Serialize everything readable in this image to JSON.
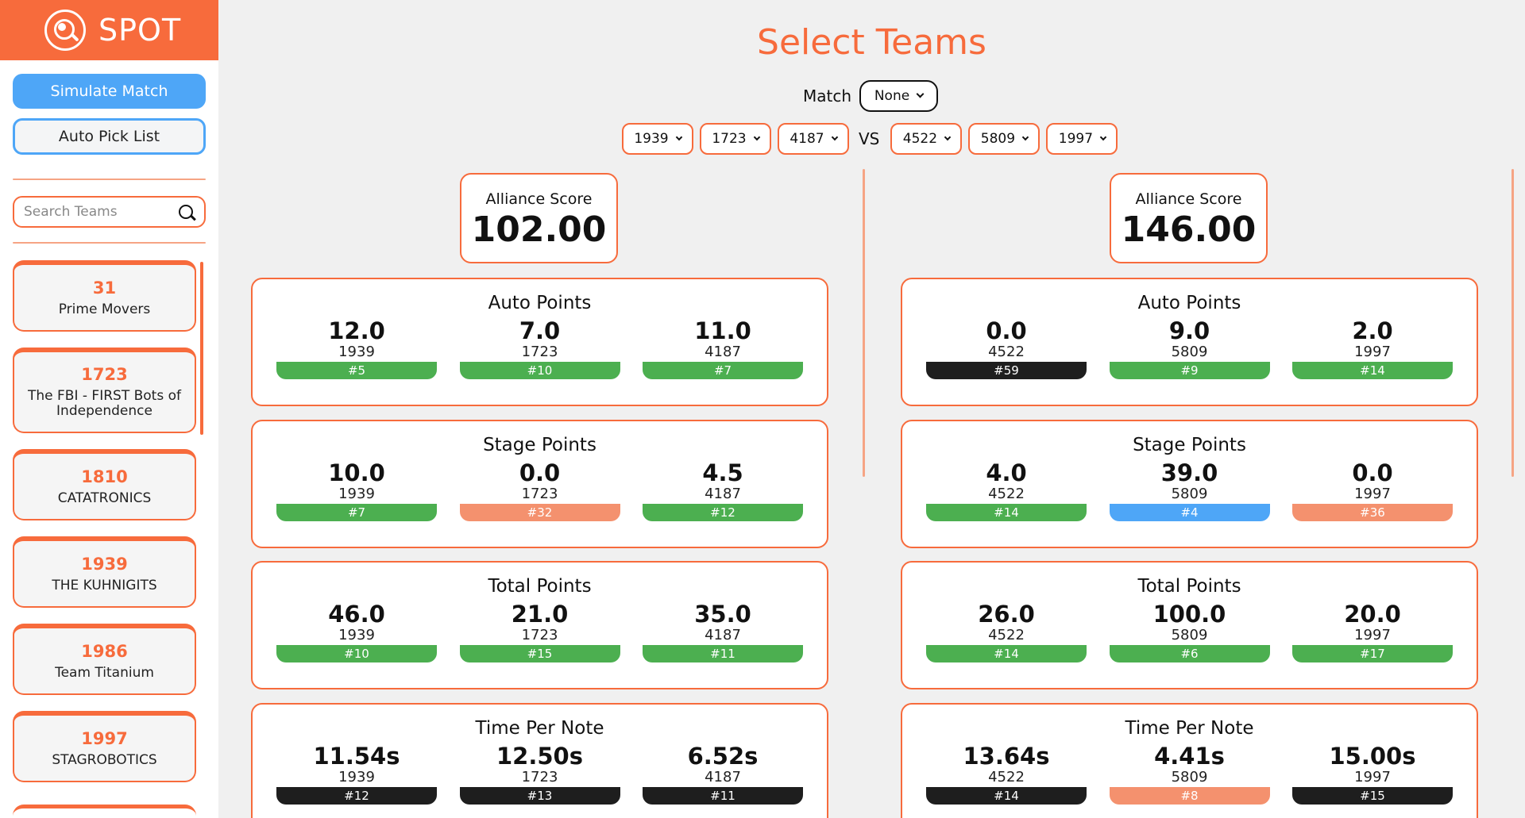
{
  "app": {
    "name": "SPOT"
  },
  "sidebar": {
    "simulate_label": "Simulate Match",
    "autopick_label": "Auto Pick List",
    "search_placeholder": "Search Teams",
    "teams": [
      {
        "number": "31",
        "name": "Prime Movers"
      },
      {
        "number": "1723",
        "name": "The FBI - FIRST Bots of Independence"
      },
      {
        "number": "1810",
        "name": "CATATRONICS"
      },
      {
        "number": "1939",
        "name": "THE KUHNIGITS"
      },
      {
        "number": "1986",
        "name": "Team Titanium"
      },
      {
        "number": "1997",
        "name": "STAGROBOTICS"
      }
    ]
  },
  "main": {
    "title": "Select Teams",
    "match_label": "Match",
    "match_value": "None",
    "vs_label": "VS",
    "red_teams": [
      "1939",
      "1723",
      "4187"
    ],
    "blue_teams": [
      "4522",
      "5809",
      "1997"
    ],
    "alliance_score_label": "Alliance Score",
    "left": {
      "alliance_score": "102.00",
      "cards": [
        {
          "title": "Auto Points",
          "cols": [
            {
              "value": "12.0",
              "team": "1939",
              "rank": "#5",
              "color": "green"
            },
            {
              "value": "7.0",
              "team": "1723",
              "rank": "#10",
              "color": "green"
            },
            {
              "value": "11.0",
              "team": "4187",
              "rank": "#7",
              "color": "green"
            }
          ]
        },
        {
          "title": "Stage Points",
          "cols": [
            {
              "value": "10.0",
              "team": "1939",
              "rank": "#7",
              "color": "green"
            },
            {
              "value": "0.0",
              "team": "1723",
              "rank": "#32",
              "color": "salmon"
            },
            {
              "value": "4.5",
              "team": "4187",
              "rank": "#12",
              "color": "green"
            }
          ]
        },
        {
          "title": "Total Points",
          "cols": [
            {
              "value": "46.0",
              "team": "1939",
              "rank": "#10",
              "color": "green"
            },
            {
              "value": "21.0",
              "team": "1723",
              "rank": "#15",
              "color": "green"
            },
            {
              "value": "35.0",
              "team": "4187",
              "rank": "#11",
              "color": "green"
            }
          ]
        },
        {
          "title": "Time Per Note",
          "cols": [
            {
              "value": "11.54s",
              "team": "1939",
              "rank": "#12",
              "color": "black"
            },
            {
              "value": "12.50s",
              "team": "1723",
              "rank": "#13",
              "color": "black"
            },
            {
              "value": "6.52s",
              "team": "4187",
              "rank": "#11",
              "color": "black"
            }
          ]
        }
      ]
    },
    "right": {
      "alliance_score": "146.00",
      "cards": [
        {
          "title": "Auto Points",
          "cols": [
            {
              "value": "0.0",
              "team": "4522",
              "rank": "#59",
              "color": "black"
            },
            {
              "value": "9.0",
              "team": "5809",
              "rank": "#9",
              "color": "green"
            },
            {
              "value": "2.0",
              "team": "1997",
              "rank": "#14",
              "color": "green"
            }
          ]
        },
        {
          "title": "Stage Points",
          "cols": [
            {
              "value": "4.0",
              "team": "4522",
              "rank": "#14",
              "color": "green"
            },
            {
              "value": "39.0",
              "team": "5809",
              "rank": "#4",
              "color": "blue"
            },
            {
              "value": "0.0",
              "team": "1997",
              "rank": "#36",
              "color": "salmon"
            }
          ]
        },
        {
          "title": "Total Points",
          "cols": [
            {
              "value": "26.0",
              "team": "4522",
              "rank": "#14",
              "color": "green"
            },
            {
              "value": "100.0",
              "team": "5809",
              "rank": "#6",
              "color": "green"
            },
            {
              "value": "20.0",
              "team": "1997",
              "rank": "#17",
              "color": "green"
            }
          ]
        },
        {
          "title": "Time Per Note",
          "cols": [
            {
              "value": "13.64s",
              "team": "4522",
              "rank": "#14",
              "color": "black"
            },
            {
              "value": "4.41s",
              "team": "5809",
              "rank": "#8",
              "color": "salmon"
            },
            {
              "value": "15.00s",
              "team": "1997",
              "rank": "#15",
              "color": "black"
            }
          ]
        }
      ]
    }
  },
  "colors": {
    "accent": "#f76b3c",
    "primary_button": "#4ea6f7",
    "rank_green": "#4caf50",
    "rank_black": "#1e1e1e",
    "rank_salmon": "#f4916e",
    "rank_blue": "#4ea6f7"
  }
}
